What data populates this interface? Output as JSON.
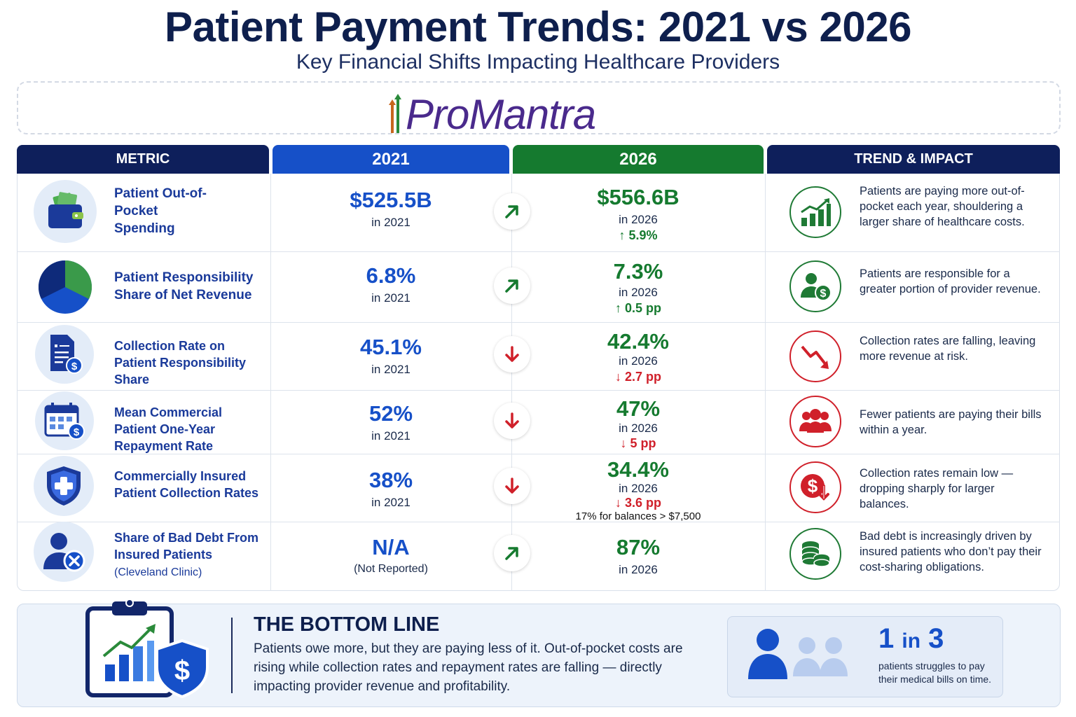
{
  "title": "Patient Payment Trends: 2021 vs 2026",
  "subtitle": "Key Financial Shifts Impacting Healthcare Providers",
  "logo": {
    "text": "ProMantra"
  },
  "headers": {
    "metric": "METRIC",
    "y2021": "2021",
    "y2026": "2026",
    "trend": "TREND & IMPACT"
  },
  "rows": [
    {
      "icon": "wallet-icon",
      "label": "Patient Out-of-Pocket Spending",
      "v2021": "$525.5B",
      "v2021_sub": "in 2021",
      "direction": "up",
      "v2026": "$556.6B",
      "v2026_sub": "in 2026",
      "change": "↑ 5.9%",
      "trend_icon": "bar-chart-up-icon",
      "trend_text": "Patients are paying more out-of-pocket each year, shouldering a larger share of healthcare costs."
    },
    {
      "icon": "pie-chart-icon",
      "label": "Patient Responsibility Share of Net Revenue",
      "v2021": "6.8%",
      "v2021_sub": "in 2021",
      "direction": "up",
      "v2026": "7.3%",
      "v2026_sub": "in 2026",
      "change": "↑ 0.5 pp",
      "trend_icon": "person-dollar-icon",
      "trend_text": "Patients are responsible for a greater portion of provider revenue."
    },
    {
      "icon": "invoice-icon",
      "label": "Collection Rate on Patient Responsibility Share",
      "v2021": "45.1%",
      "v2021_sub": "in 2021",
      "direction": "down",
      "v2026": "42.4%",
      "v2026_sub": "in 2026",
      "change": "↓ 2.7 pp",
      "trend_icon": "trend-down-icon",
      "trend_text": "Collection rates are falling, leaving more revenue at risk."
    },
    {
      "icon": "calendar-dollar-icon",
      "label": "Mean Commercial Patient One-Year Repayment Rate",
      "v2021": "52%",
      "v2021_sub": "in 2021",
      "direction": "down",
      "v2026": "47%",
      "v2026_sub": "in 2026",
      "change": "↓ 5 pp",
      "trend_icon": "people-group-icon",
      "trend_text": "Fewer patients are paying their bills within a year."
    },
    {
      "icon": "shield-cross-icon",
      "label": "Commercially Insured Patient Collection Rates",
      "v2021": "38%",
      "v2021_sub": "in 2021",
      "direction": "down",
      "v2026": "34.4%",
      "v2026_sub": "in 2026",
      "change": "↓ 3.6 pp",
      "note": "17% for balances > $7,500",
      "trend_icon": "dollar-down-icon",
      "trend_text": "Collection rates remain low — dropping sharply for larger balances."
    },
    {
      "icon": "person-x-icon",
      "label": "Share of Bad Debt From Insured Patients",
      "label_sub": "(Cleveland Clinic)",
      "v2021": "N/A",
      "v2021_sub": "(Not Reported)",
      "direction": "up",
      "v2026": "87%",
      "v2026_sub": "in 2026",
      "trend_icon": "coins-stack-icon",
      "trend_text": "Bad debt is increasingly driven by insured patients who don’t pay their cost-sharing obligations."
    }
  ],
  "bottom": {
    "title": "THE BOTTOM LINE",
    "text": "Patients owe more, but they are paying less of it. Out-of-pocket costs are rising while collection rates and repayment rates are falling — directly impacting provider revenue and profitability.",
    "stat_num": "1",
    "stat_in": "in",
    "stat_den": "3",
    "stat_text": "patients struggles to pay their medical bills on time."
  },
  "colors": {
    "navy": "#0e1f5b",
    "blue": "#1650c8",
    "green": "#157a2f",
    "red": "#d0202a"
  }
}
